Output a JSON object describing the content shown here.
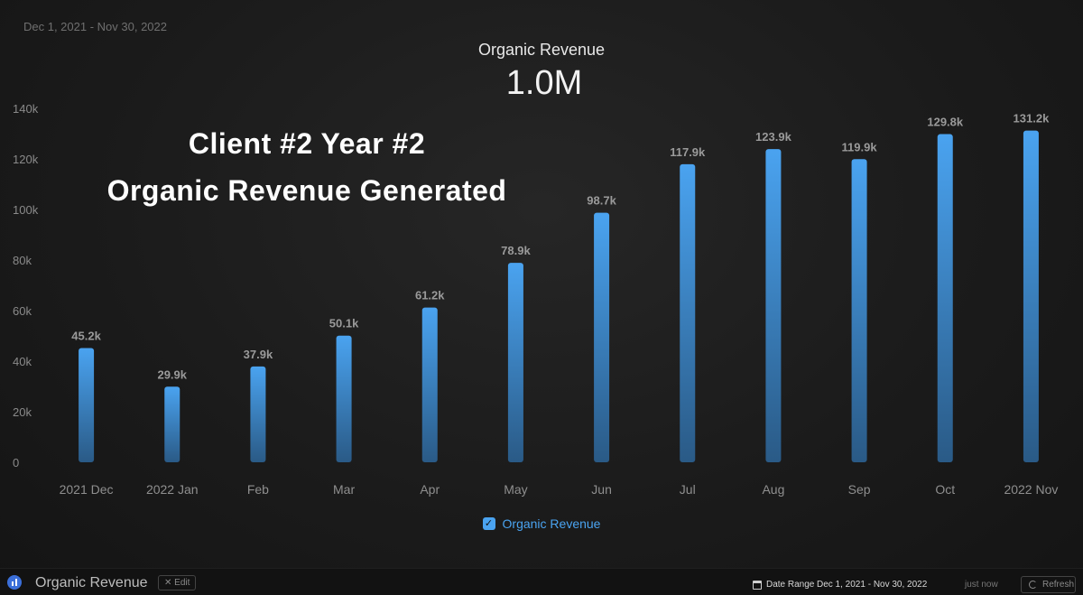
{
  "header": {
    "date_range": "Dec 1, 2021 - Nov 30, 2022",
    "kpi_label": "Organic Revenue",
    "kpi_value": "1.0M"
  },
  "overlay": {
    "line1": "Client #2 Year #2",
    "line2": "Organic Revenue Generated"
  },
  "chart_data": {
    "type": "bar",
    "title": "",
    "xlabel": "",
    "ylabel": "",
    "categories": [
      "2021 Dec",
      "2022 Jan",
      "Feb",
      "Mar",
      "Apr",
      "May",
      "Jun",
      "Jul",
      "Aug",
      "Sep",
      "Oct",
      "2022 Nov"
    ],
    "series": [
      {
        "name": "Organic Revenue",
        "values": [
          45200,
          29900,
          37900,
          50100,
          61200,
          78900,
          98700,
          117900,
          123900,
          119900,
          129800,
          131200
        ],
        "labels": [
          "45.2k",
          "29.9k",
          "37.9k",
          "50.1k",
          "61.2k",
          "78.9k",
          "98.7k",
          "117.9k",
          "123.9k",
          "119.9k",
          "129.8k",
          "131.2k"
        ]
      }
    ],
    "ylim": [
      0,
      140000
    ],
    "yticks": [
      0,
      20000,
      40000,
      60000,
      80000,
      100000,
      120000,
      140000
    ],
    "ytick_labels": [
      "0",
      "20k",
      "40k",
      "60k",
      "80k",
      "100k",
      "120k",
      "140k"
    ],
    "grid": false,
    "legend": "bottom-center",
    "colors": {
      "bar_top": "#4aa3f0",
      "bar_bottom": "#2a5a86",
      "label": "#9a9a9a"
    }
  },
  "legend": {
    "label": "Organic Revenue",
    "checked": true
  },
  "footer": {
    "title": "Organic Revenue",
    "edit_label": "Edit",
    "range_label": "Date Range",
    "range_value": "Dec 1, 2021 - Nov 30, 2022",
    "updated": "just now",
    "refresh_label": "Refresh"
  }
}
